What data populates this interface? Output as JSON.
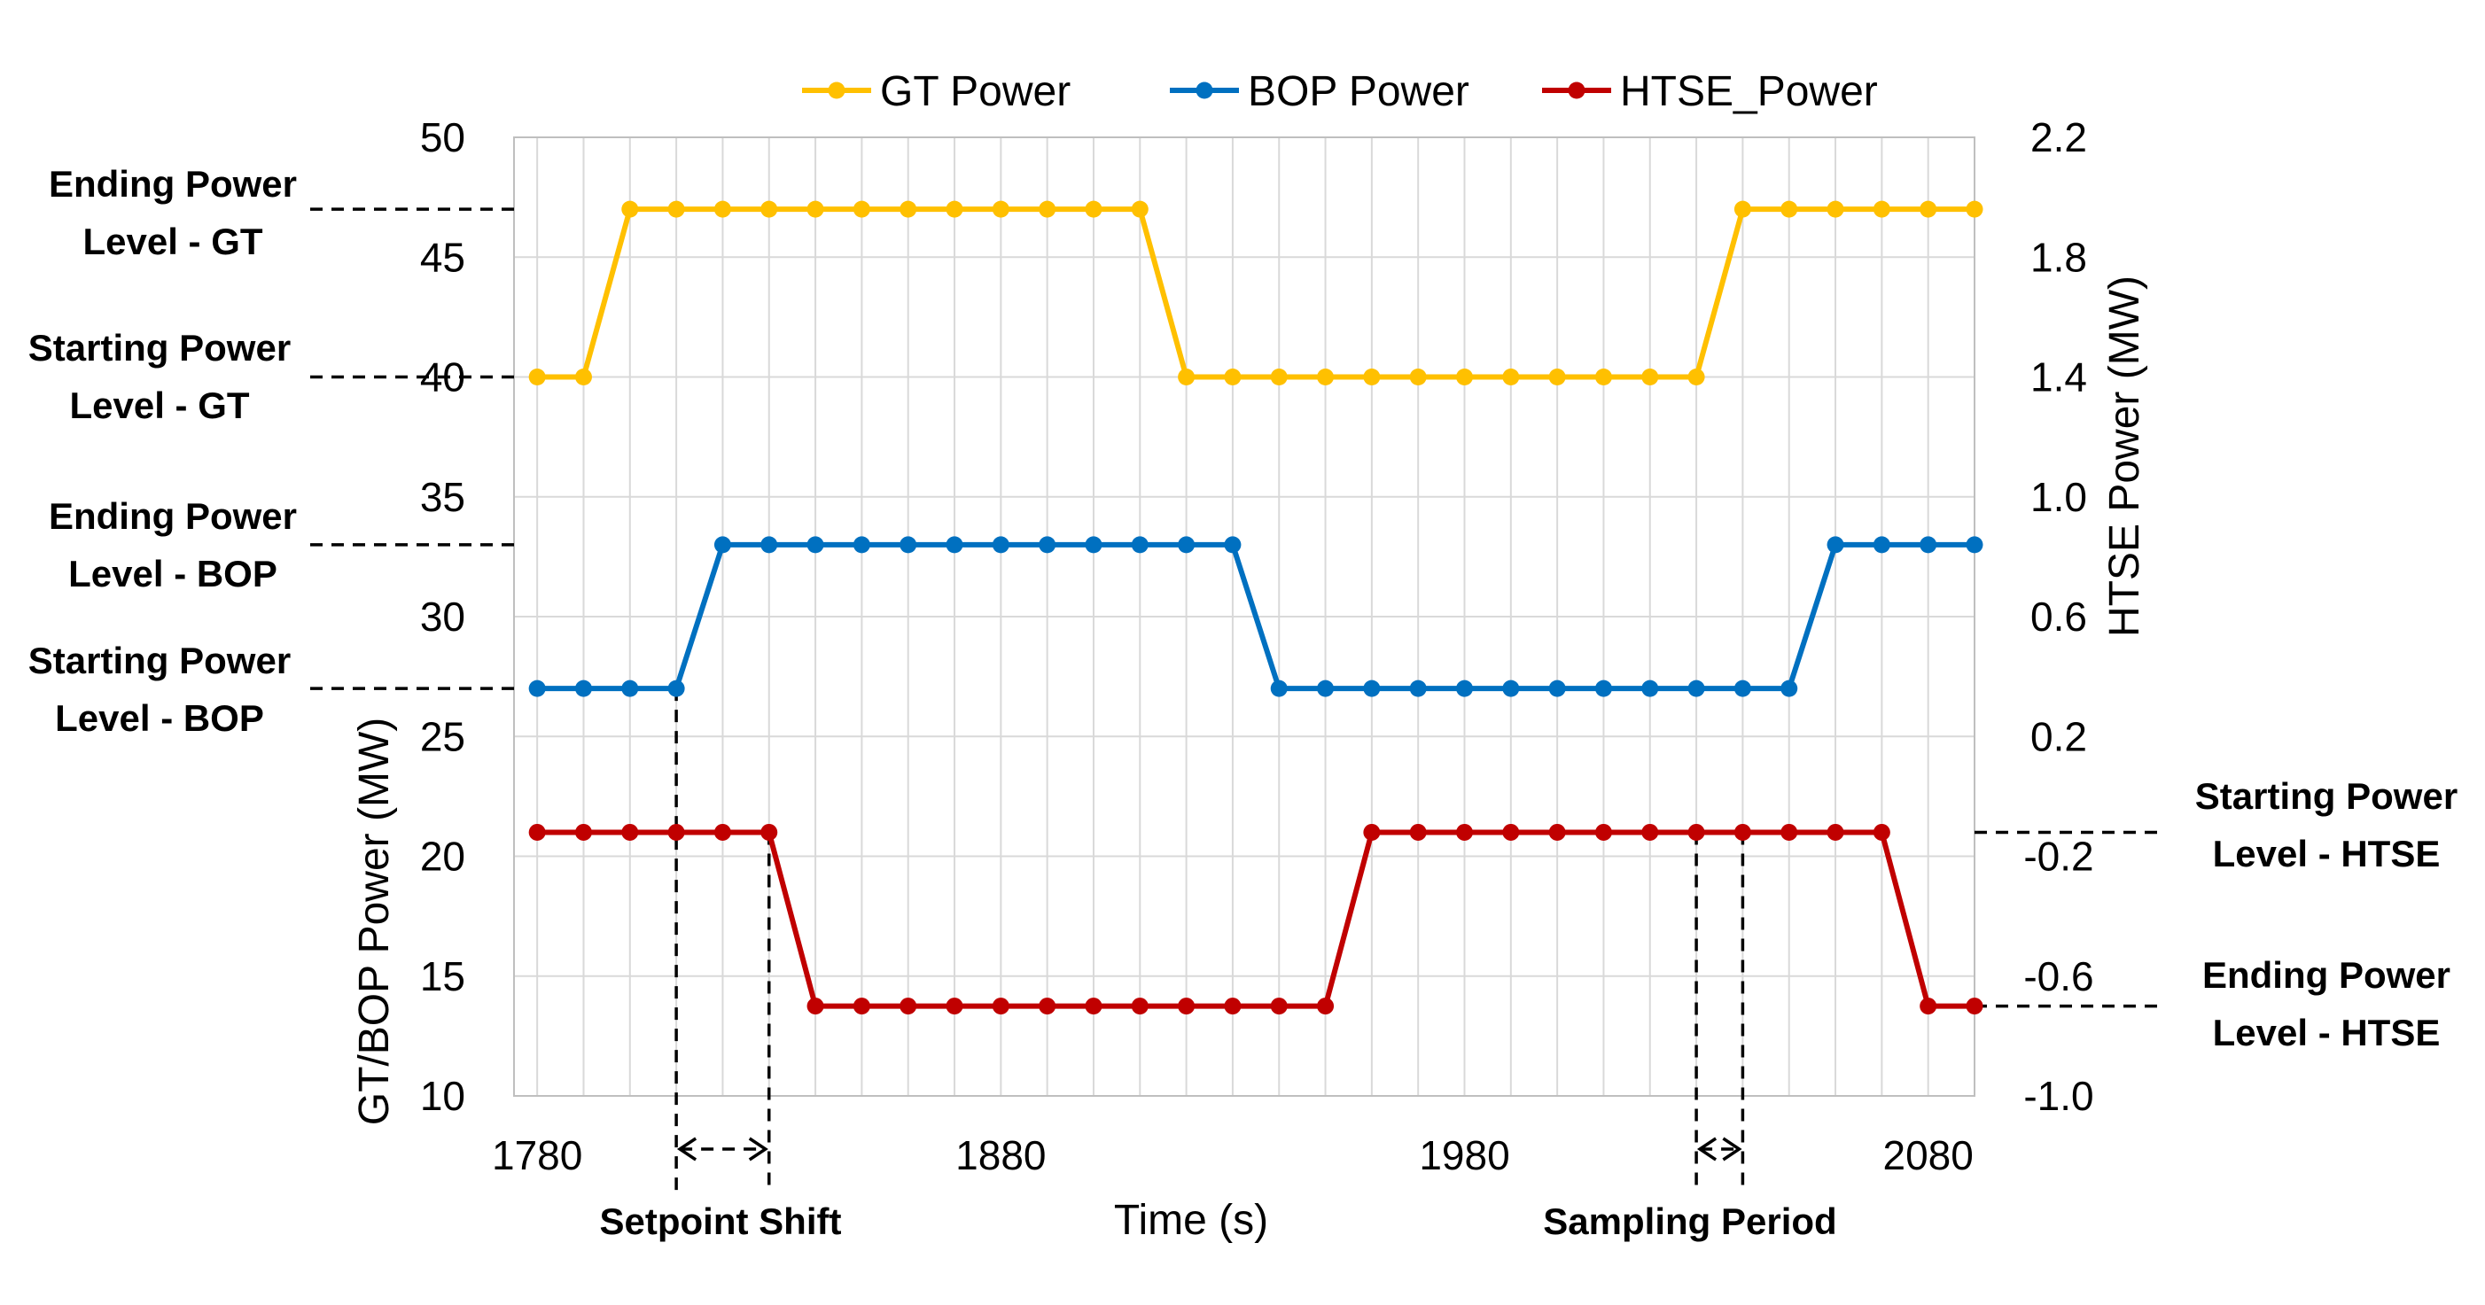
{
  "chart_data": {
    "type": "line",
    "xlabel": "Time (s)",
    "ylabel_left": "GT/BOP Power (MW)",
    "ylabel_right": "HTSE Power (MW)",
    "xlim": [
      1775,
      2090
    ],
    "ylim_left": [
      10,
      50
    ],
    "ylim_right": [
      -1.0,
      2.2
    ],
    "x_ticks": [
      1780,
      1880,
      1980,
      2080
    ],
    "y_ticks_left": [
      10,
      15,
      20,
      25,
      30,
      35,
      40,
      45,
      50
    ],
    "y_ticks_right": [
      "-1.0",
      "-0.6",
      "-0.2",
      "0.2",
      "0.6",
      "1.0",
      "1.4",
      "1.8",
      "2.2"
    ],
    "grid": true,
    "legend_position": "top",
    "x": [
      1780,
      1790,
      1800,
      1810,
      1820,
      1830,
      1840,
      1850,
      1860,
      1870,
      1880,
      1890,
      1900,
      1910,
      1920,
      1930,
      1940,
      1950,
      1960,
      1970,
      1980,
      1990,
      2000,
      2010,
      2020,
      2030,
      2040,
      2050,
      2060,
      2070,
      2080,
      2090
    ],
    "series": [
      {
        "name": "GT Power",
        "axis": "left",
        "color": "#FFC000",
        "values": [
          40,
          40,
          47,
          47,
          47,
          47,
          47,
          47,
          47,
          47,
          47,
          47,
          47,
          47,
          40,
          40,
          40,
          40,
          40,
          40,
          40,
          40,
          40,
          40,
          40,
          40,
          47,
          47,
          47,
          47,
          47,
          47
        ]
      },
      {
        "name": "BOP Power",
        "axis": "left",
        "color": "#0070C0",
        "values": [
          27,
          27,
          27,
          27,
          33,
          33,
          33,
          33,
          33,
          33,
          33,
          33,
          33,
          33,
          33,
          33,
          27,
          27,
          27,
          27,
          27,
          27,
          27,
          27,
          27,
          27,
          27,
          27,
          33,
          33,
          33,
          33
        ]
      },
      {
        "name": "HTSE_Power",
        "axis": "right",
        "color": "#C00000",
        "values": [
          -0.12,
          -0.12,
          -0.12,
          -0.12,
          -0.12,
          -0.12,
          -0.7,
          -0.7,
          -0.7,
          -0.7,
          -0.7,
          -0.7,
          -0.7,
          -0.7,
          -0.7,
          -0.7,
          -0.7,
          -0.7,
          -0.12,
          -0.12,
          -0.12,
          -0.12,
          -0.12,
          -0.12,
          -0.12,
          -0.12,
          -0.12,
          -0.12,
          -0.12,
          -0.12,
          -0.7,
          -0.7
        ]
      }
    ],
    "annotations": {
      "gt_ending": {
        "line1": "Ending Power",
        "line2": "Level - GT",
        "level": 47,
        "axis": "left"
      },
      "gt_starting": {
        "line1": "Starting Power",
        "line2": "Level - GT",
        "level": 40,
        "axis": "left"
      },
      "bop_ending": {
        "line1": "Ending Power",
        "line2": "Level - BOP",
        "level": 33,
        "axis": "left"
      },
      "bop_starting": {
        "line1": "Starting Power",
        "line2": "Level - BOP",
        "level": 27,
        "axis": "left"
      },
      "htse_starting": {
        "line1": "Starting Power",
        "line2": "Level - HTSE",
        "level": -0.12,
        "axis": "right"
      },
      "htse_ending": {
        "line1": "Ending Power",
        "line2": "Level - HTSE",
        "level": -0.7,
        "axis": "right"
      },
      "setpoint_shift": {
        "label": "Setpoint Shift",
        "x_start": 1810,
        "x_end": 1830
      },
      "sampling_period": {
        "label": "Sampling Period",
        "x_start": 2030,
        "x_end": 2040
      }
    }
  }
}
